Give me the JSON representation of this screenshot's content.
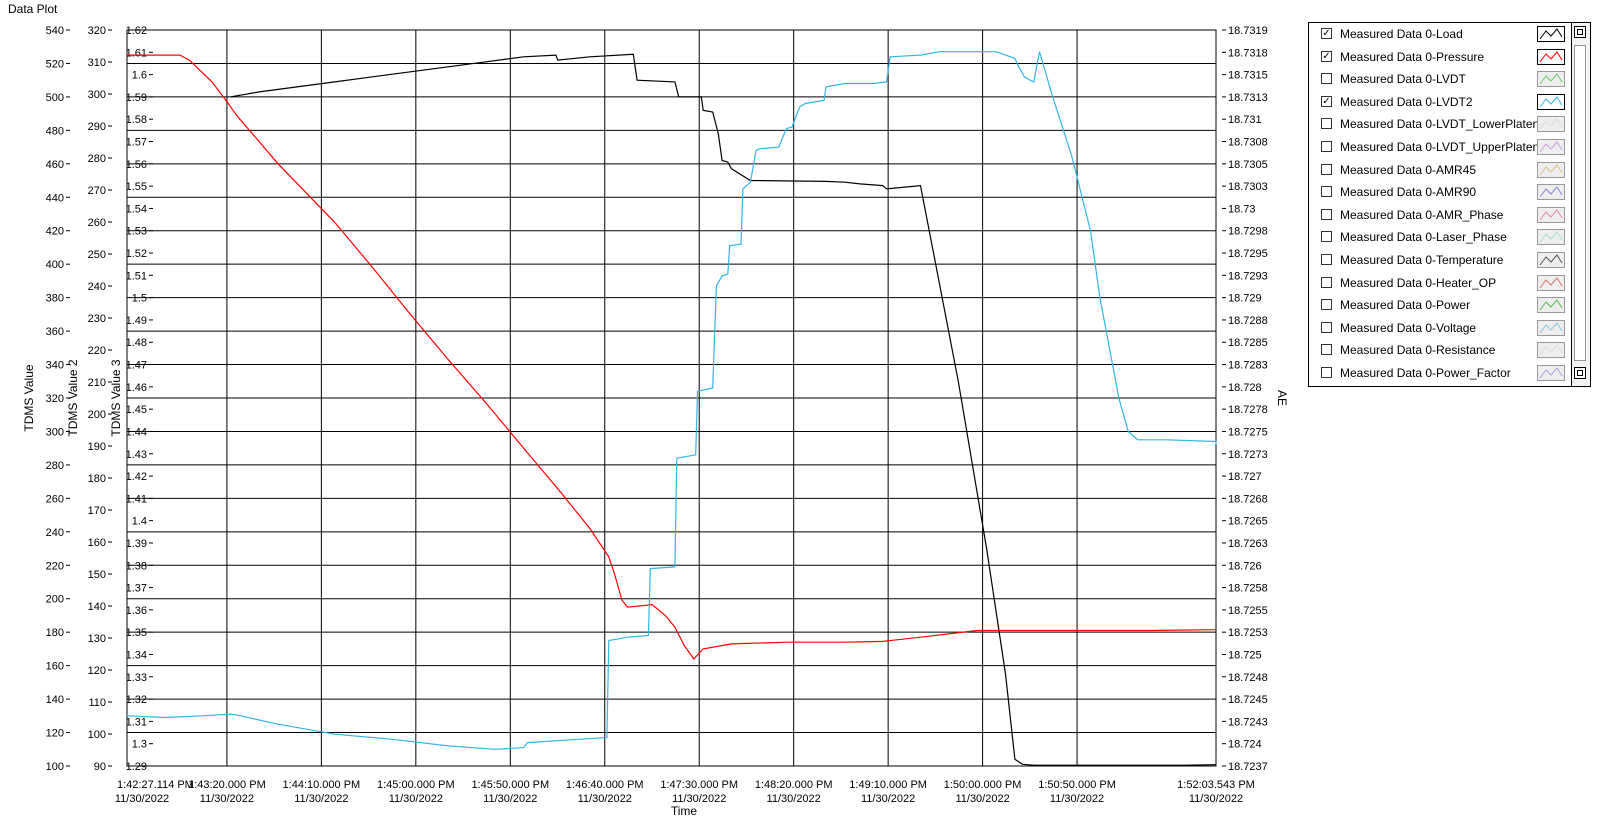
{
  "window": {
    "title": "Data Plot"
  },
  "chart_data": {
    "type": "line",
    "xlabel": "Time",
    "date_label": "11/30/2022",
    "x_range": [
      "1:42:27.114 PM",
      "1:52:03.543 PM"
    ],
    "x_range_seconds": [
      0,
      576.429
    ],
    "x_ticks": [
      {
        "t": 0,
        "time": "1:42:27.114 PM",
        "date": "11/30/2022"
      },
      {
        "t": 52.886,
        "time": "1:43:20.000 PM",
        "date": "11/30/2022"
      },
      {
        "t": 102.886,
        "time": "1:44:10.000 PM",
        "date": "11/30/2022"
      },
      {
        "t": 152.886,
        "time": "1:45:00.000 PM",
        "date": "11/30/2022"
      },
      {
        "t": 202.886,
        "time": "1:45:50.000 PM",
        "date": "11/30/2022"
      },
      {
        "t": 252.886,
        "time": "1:46:40.000 PM",
        "date": "11/30/2022"
      },
      {
        "t": 302.886,
        "time": "1:47:30.000 PM",
        "date": "11/30/2022"
      },
      {
        "t": 352.886,
        "time": "1:48:20.000 PM",
        "date": "11/30/2022"
      },
      {
        "t": 402.886,
        "time": "1:49:10.000 PM",
        "date": "11/30/2022"
      },
      {
        "t": 452.886,
        "time": "1:50:00.000 PM",
        "date": "11/30/2022"
      },
      {
        "t": 502.886,
        "time": "1:50:50.000 PM",
        "date": "11/30/2022"
      },
      {
        "t": 576.429,
        "time": "1:52:03.543 PM",
        "date": "11/30/2022"
      }
    ],
    "axes": [
      {
        "id": "y1",
        "label": "TDMS Value",
        "range": [
          100,
          540
        ],
        "ticks": [
          "540",
          "520",
          "500",
          "480",
          "460",
          "440",
          "420",
          "400",
          "380",
          "360",
          "340",
          "320",
          "300",
          "280",
          "260",
          "240",
          "220",
          "200",
          "180",
          "160",
          "140",
          "120",
          "100"
        ]
      },
      {
        "id": "y2",
        "label": "TDMS Value 2",
        "range": [
          90,
          320
        ],
        "ticks": [
          "320",
          "310",
          "300",
          "290",
          "280",
          "270",
          "260",
          "250",
          "240",
          "230",
          "220",
          "210",
          "200",
          "190",
          "180",
          "170",
          "160",
          "150",
          "140",
          "130",
          "120",
          "110",
          "100",
          "90"
        ]
      },
      {
        "id": "y3",
        "label": "TDMS Value 3",
        "range": [
          1.29,
          1.62
        ],
        "ticks": [
          "1.62",
          "1.61",
          "1.6",
          "1.59",
          "1.58",
          "1.57",
          "1.56",
          "1.55",
          "1.54",
          "1.53",
          "1.52",
          "1.51",
          "1.5",
          "1.49",
          "1.48",
          "1.47",
          "1.46",
          "1.45",
          "1.44",
          "1.43",
          "1.42",
          "1.41",
          "1.4",
          "1.39",
          "1.38",
          "1.37",
          "1.36",
          "1.35",
          "1.34",
          "1.33",
          "1.32",
          "1.31",
          "1.3",
          "1.29"
        ]
      },
      {
        "id": "y4",
        "label": "AE",
        "side": "right",
        "ticks": [
          "18.7319",
          "18.7318",
          "18.7315",
          "18.7313",
          "18.731",
          "18.7308",
          "18.7305",
          "18.7303",
          "18.73",
          "18.7298",
          "18.7295",
          "18.7293",
          "18.729",
          "18.7288",
          "18.7285",
          "18.7283",
          "18.728",
          "18.7278",
          "18.7275",
          "18.7273",
          "18.727",
          "18.7268",
          "18.7265",
          "18.7263",
          "18.726",
          "18.7258",
          "18.7255",
          "18.7253",
          "18.725",
          "18.7248",
          "18.7245",
          "18.7243",
          "18.724",
          "18.7237"
        ]
      }
    ],
    "grid": true,
    "series": [
      {
        "name": "Measured Data 0-Load",
        "color": "#000000",
        "axis": "y1",
        "points": [
          [
            55,
            500
          ],
          [
            60,
            501
          ],
          [
            70,
            503
          ],
          [
            90,
            506
          ],
          [
            110,
            509
          ],
          [
            130,
            512
          ],
          [
            150,
            515
          ],
          [
            170,
            518
          ],
          [
            190,
            521
          ],
          [
            210,
            524
          ],
          [
            227,
            525
          ],
          [
            228,
            522
          ],
          [
            245,
            524
          ],
          [
            268,
            525.5
          ],
          [
            270,
            510
          ],
          [
            290,
            509
          ],
          [
            292,
            500
          ],
          [
            304,
            500
          ],
          [
            305,
            492
          ],
          [
            310,
            491
          ],
          [
            313,
            478
          ],
          [
            315,
            462
          ],
          [
            318,
            461
          ],
          [
            320,
            457
          ],
          [
            330,
            450
          ],
          [
            370,
            449.5
          ],
          [
            380,
            449
          ],
          [
            388,
            448
          ],
          [
            400,
            447
          ],
          [
            402,
            445
          ],
          [
            420,
            447
          ],
          [
            440,
            330
          ],
          [
            455,
            230
          ],
          [
            465,
            155
          ],
          [
            470,
            104
          ],
          [
            474,
            101
          ],
          [
            480,
            100.5
          ],
          [
            500,
            100.5
          ],
          [
            540,
            100.5
          ],
          [
            560,
            100.5
          ],
          [
            576.4,
            100.8
          ]
        ]
      },
      {
        "name": "Measured Data 0-Pressure",
        "color": "#ff0000",
        "axis": "y1",
        "points": [
          [
            0,
            525
          ],
          [
            20,
            525
          ],
          [
            28,
            525
          ],
          [
            33,
            522
          ],
          [
            45,
            509
          ],
          [
            53,
            497
          ],
          [
            58,
            489
          ],
          [
            80,
            460
          ],
          [
            110,
            425
          ],
          [
            130,
            398
          ],
          [
            150,
            370
          ],
          [
            170,
            343
          ],
          [
            190,
            317
          ],
          [
            210,
            290
          ],
          [
            230,
            263
          ],
          [
            245,
            242
          ],
          [
            255,
            225
          ],
          [
            258,
            215
          ],
          [
            262,
            199
          ],
          [
            265,
            195
          ],
          [
            278,
            196.5
          ],
          [
            285,
            190
          ],
          [
            290,
            183
          ],
          [
            295,
            172
          ],
          [
            300,
            164
          ],
          [
            305,
            170
          ],
          [
            320,
            173
          ],
          [
            350,
            174
          ],
          [
            380,
            174
          ],
          [
            400,
            174.5
          ],
          [
            420,
            177
          ],
          [
            450,
            181
          ],
          [
            480,
            181
          ],
          [
            500,
            181
          ],
          [
            540,
            181
          ],
          [
            576.4,
            181.5
          ]
        ]
      },
      {
        "name": "Measured Data 0-LVDT2",
        "color": "#33b5e5",
        "axis": "y1",
        "points": [
          [
            0,
            130
          ],
          [
            20,
            129
          ],
          [
            40,
            130
          ],
          [
            55,
            131
          ],
          [
            60,
            130
          ],
          [
            80,
            125
          ],
          [
            110,
            119
          ],
          [
            140,
            116
          ],
          [
            170,
            112
          ],
          [
            195,
            110
          ],
          [
            210,
            111
          ],
          [
            212,
            114
          ],
          [
            240,
            116
          ],
          [
            254,
            117
          ],
          [
            255,
            175
          ],
          [
            265,
            177
          ],
          [
            276,
            178
          ],
          [
            277,
            218
          ],
          [
            290,
            219
          ],
          [
            291,
            284
          ],
          [
            301,
            286
          ],
          [
            302,
            324
          ],
          [
            310,
            326
          ],
          [
            312,
            387
          ],
          [
            315,
            393
          ],
          [
            318,
            394
          ],
          [
            319,
            411
          ],
          [
            325,
            412
          ],
          [
            326,
            445
          ],
          [
            330,
            449
          ],
          [
            333,
            468
          ],
          [
            335,
            469
          ],
          [
            345,
            470
          ],
          [
            349,
            481
          ],
          [
            352,
            482
          ],
          [
            356,
            494
          ],
          [
            359,
            496
          ],
          [
            364,
            497
          ],
          [
            369,
            498
          ],
          [
            370,
            506
          ],
          [
            380,
            508
          ],
          [
            395,
            508
          ],
          [
            402,
            509
          ],
          [
            404,
            524
          ],
          [
            420,
            525
          ],
          [
            430,
            527
          ],
          [
            445,
            527
          ],
          [
            460,
            527
          ],
          [
            470,
            523
          ],
          [
            472,
            518
          ],
          [
            475,
            512
          ],
          [
            478,
            510
          ],
          [
            480,
            509
          ],
          [
            483,
            527
          ],
          [
            490,
            500
          ],
          [
            500,
            465
          ],
          [
            510,
            420
          ],
          [
            515,
            380
          ],
          [
            520,
            350
          ],
          [
            525,
            320
          ],
          [
            530,
            300
          ],
          [
            535,
            295
          ],
          [
            550,
            295
          ],
          [
            580,
            294
          ],
          [
            600,
            293
          ],
          [
            640,
            294
          ],
          [
            700,
            294
          ],
          [
            860,
            292
          ],
          [
            1000,
            292
          ]
        ]
      }
    ]
  },
  "legend": {
    "items": [
      {
        "label": "Measured Data 0-Load",
        "checked": true,
        "color": "#000000"
      },
      {
        "label": "Measured Data 0-Pressure",
        "checked": true,
        "color": "#ff0000"
      },
      {
        "label": "Measured Data 0-LVDT",
        "checked": false,
        "color": "#66cc66"
      },
      {
        "label": "Measured Data 0-LVDT2",
        "checked": true,
        "color": "#33b5e5"
      },
      {
        "label": "Measured Data 0-LVDT_LowerPlaten",
        "checked": false,
        "color": "#dddddd"
      },
      {
        "label": "Measured Data 0-LVDT_UpperPlaten",
        "checked": false,
        "color": "#c8a0e0"
      },
      {
        "label": "Measured Data 0-AMR45",
        "checked": false,
        "color": "#d9c08a"
      },
      {
        "label": "Measured Data 0-AMR90",
        "checked": false,
        "color": "#8888dd"
      },
      {
        "label": "Measured Data 0-AMR_Phase",
        "checked": false,
        "color": "#e88aa0"
      },
      {
        "label": "Measured Data 0-Laser_Phase",
        "checked": false,
        "color": "#a8e0c8"
      },
      {
        "label": "Measured Data 0-Temperature",
        "checked": false,
        "color": "#555555"
      },
      {
        "label": "Measured Data 0-Heater_OP",
        "checked": false,
        "color": "#e07070"
      },
      {
        "label": "Measured Data 0-Power",
        "checked": false,
        "color": "#55bb55"
      },
      {
        "label": "Measured Data 0-Voltage",
        "checked": false,
        "color": "#88c8e8"
      },
      {
        "label": "Measured Data 0-Resistance",
        "checked": false,
        "color": "#dddddd"
      },
      {
        "label": "Measured Data 0-Power_Factor",
        "checked": false,
        "color": "#b0a0e0"
      }
    ]
  }
}
